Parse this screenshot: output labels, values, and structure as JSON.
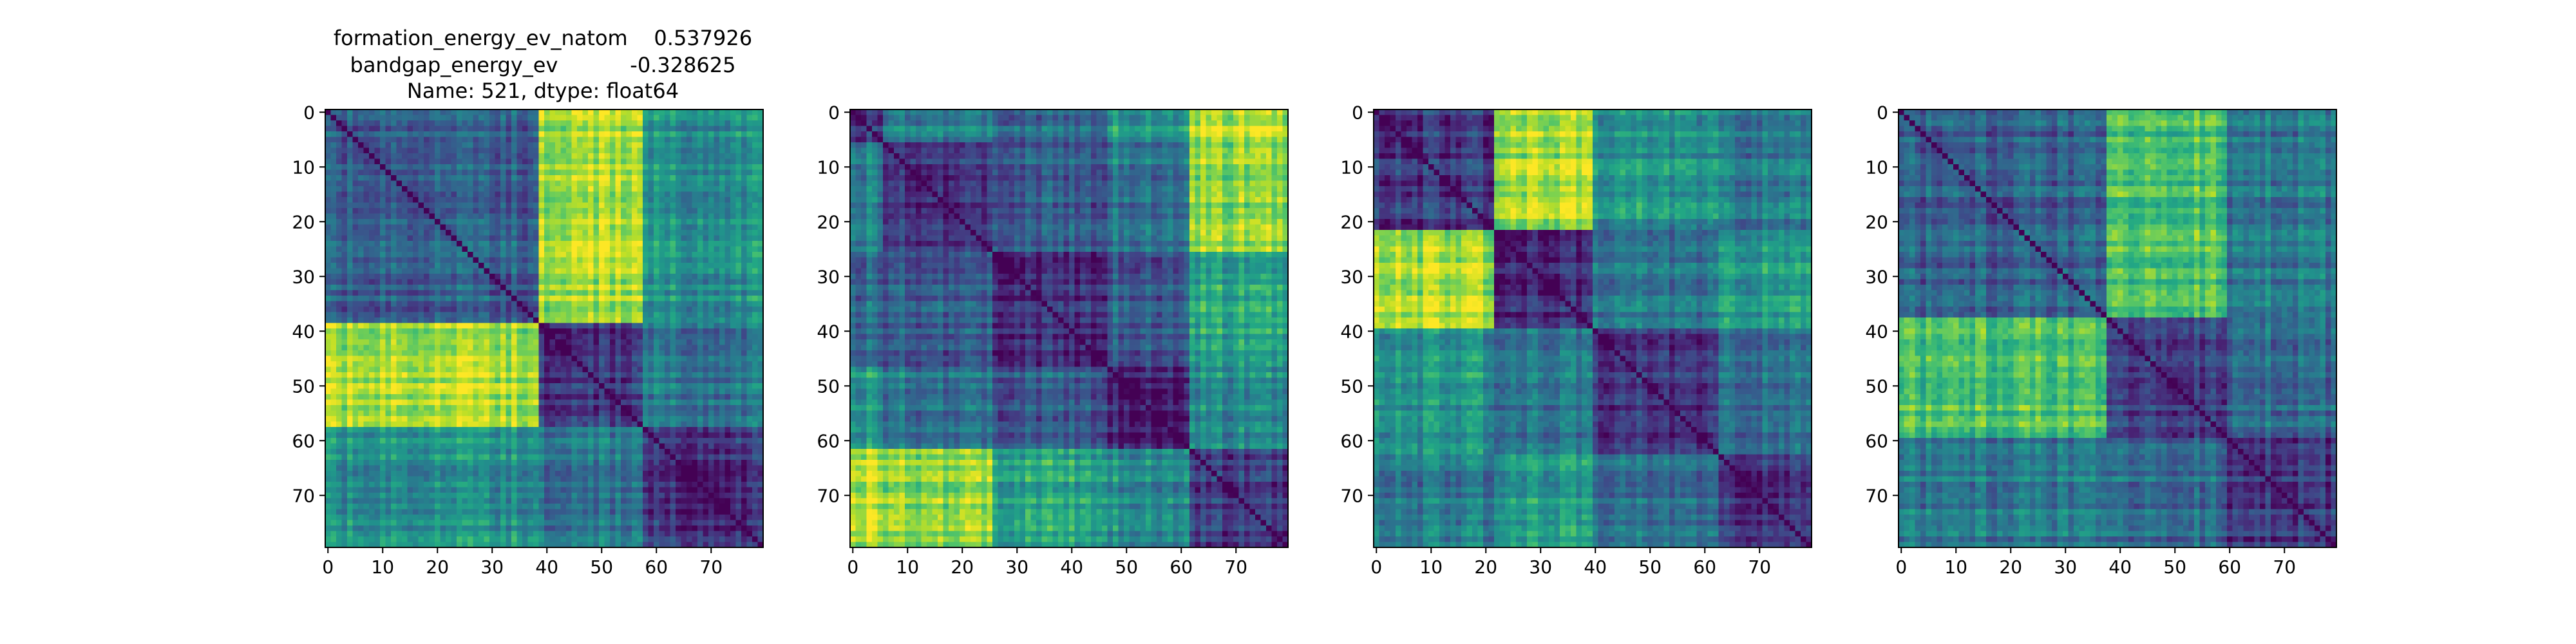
{
  "figure": {
    "title_lines": [
      "formation_energy_ev_natom    0.537926",
      "bandgap_energy_ev           -0.328625",
      "Name: 521, dtype: float64"
    ]
  },
  "chart_data": [
    {
      "type": "heatmap",
      "size": 80,
      "colormap": "viridis",
      "vmin": 0,
      "vmax": 1,
      "blocks": [
        0,
        39,
        58,
        80
      ],
      "block_levels": [
        [
          0.3,
          0.88,
          0.5
        ],
        [
          0.88,
          0.18,
          0.4
        ],
        [
          0.5,
          0.4,
          0.15
        ]
      ],
      "xlim": [
        0,
        79
      ],
      "ylim": [
        79,
        0
      ],
      "x_ticks": [
        "0",
        "10",
        "20",
        "30",
        "40",
        "50",
        "60",
        "70"
      ],
      "y_ticks": [
        "0",
        "10",
        "20",
        "30",
        "40",
        "50",
        "60",
        "70"
      ]
    },
    {
      "type": "heatmap",
      "size": 80,
      "colormap": "viridis",
      "vmin": 0,
      "vmax": 1,
      "blocks": [
        0,
        6,
        26,
        47,
        62,
        80
      ],
      "block_levels": [
        [
          0.2,
          0.45,
          0.35,
          0.55,
          0.92
        ],
        [
          0.45,
          0.18,
          0.3,
          0.4,
          0.85
        ],
        [
          0.35,
          0.3,
          0.15,
          0.3,
          0.6
        ],
        [
          0.55,
          0.4,
          0.3,
          0.12,
          0.5
        ],
        [
          0.92,
          0.85,
          0.6,
          0.5,
          0.2
        ]
      ],
      "xlim": [
        0,
        79
      ],
      "ylim": [
        79,
        0
      ],
      "x_ticks": [
        "0",
        "10",
        "20",
        "30",
        "40",
        "50",
        "60",
        "70"
      ],
      "y_ticks": [
        "0",
        "10",
        "20",
        "30",
        "40",
        "50",
        "60",
        "70"
      ]
    },
    {
      "type": "heatmap",
      "size": 80,
      "colormap": "viridis",
      "vmin": 0,
      "vmax": 1,
      "blocks": [
        0,
        22,
        40,
        63,
        80
      ],
      "block_levels": [
        [
          0.15,
          0.88,
          0.5,
          0.4
        ],
        [
          0.88,
          0.15,
          0.4,
          0.55
        ],
        [
          0.5,
          0.4,
          0.15,
          0.35
        ],
        [
          0.4,
          0.55,
          0.35,
          0.15
        ]
      ],
      "xlim": [
        0,
        79
      ],
      "ylim": [
        79,
        0
      ],
      "x_ticks": [
        "0",
        "10",
        "20",
        "30",
        "40",
        "50",
        "60",
        "70"
      ],
      "y_ticks": [
        "0",
        "10",
        "20",
        "30",
        "40",
        "50",
        "60",
        "70"
      ]
    },
    {
      "type": "heatmap",
      "size": 80,
      "colormap": "viridis",
      "vmin": 0,
      "vmax": 1,
      "blocks": [
        0,
        38,
        60,
        80
      ],
      "block_levels": [
        [
          0.3,
          0.7,
          0.4
        ],
        [
          0.7,
          0.2,
          0.35
        ],
        [
          0.4,
          0.35,
          0.18
        ]
      ],
      "xlim": [
        0,
        79
      ],
      "ylim": [
        79,
        0
      ],
      "x_ticks": [
        "0",
        "10",
        "20",
        "30",
        "40",
        "50",
        "60",
        "70"
      ],
      "y_ticks": [
        "0",
        "10",
        "20",
        "30",
        "40",
        "50",
        "60",
        "70"
      ]
    }
  ]
}
